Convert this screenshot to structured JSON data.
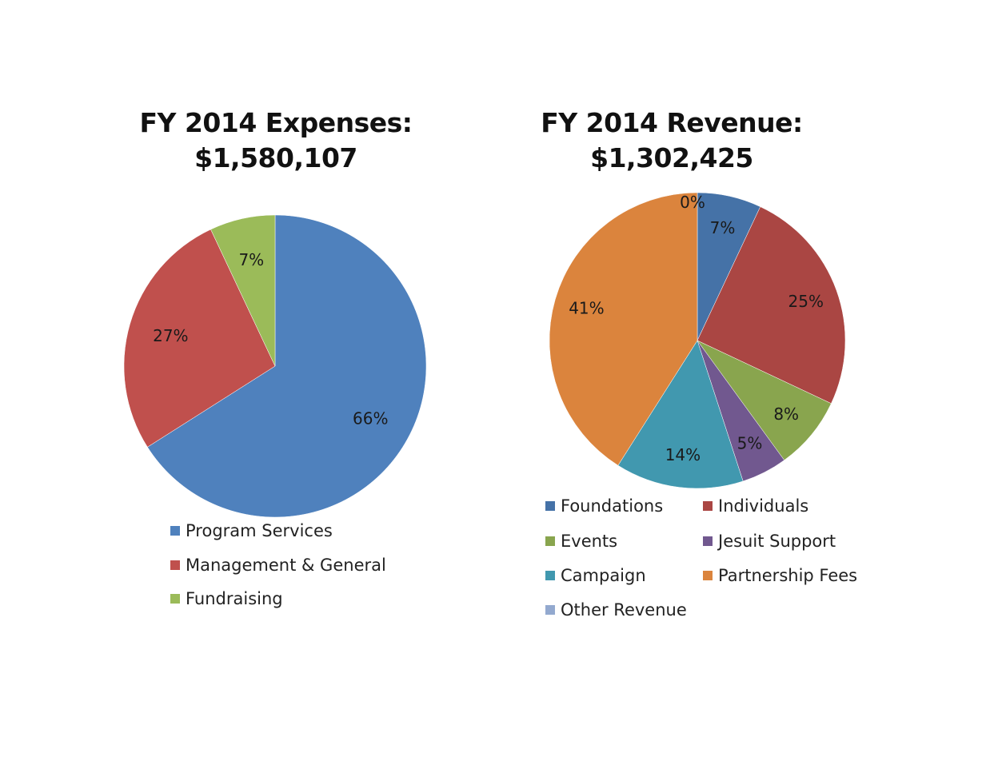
{
  "chart_data": [
    {
      "type": "pie",
      "title_line1": "FY 2014 Expenses:",
      "title_line2": "$1,580,107",
      "categories": [
        "Program Services",
        "Management & General",
        "Fundraising"
      ],
      "values": [
        66,
        27,
        7
      ],
      "labels": [
        "66%",
        "27%",
        "7%"
      ],
      "colors": [
        "#4F81BD",
        "#C0504D",
        "#9BBB59"
      ],
      "legend_placement": "bottom"
    },
    {
      "type": "pie",
      "title_line1": "FY 2014 Revenue:",
      "title_line2": "$1,302,425",
      "categories": [
        "Foundations",
        "Individuals",
        "Events",
        "Jesuit Support",
        "Campaign",
        "Partnership Fees",
        "Other Revenue"
      ],
      "values": [
        7,
        25,
        8,
        5,
        14,
        41,
        0
      ],
      "labels": [
        "7%",
        "25%",
        "8%",
        "5%",
        "14%",
        "41%",
        "0%"
      ],
      "colors": [
        "#4572A7",
        "#AA4643",
        "#89A54E",
        "#71588F",
        "#4198AF",
        "#DB843D",
        "#93A9CF"
      ],
      "legend_placement": "bottom"
    }
  ]
}
